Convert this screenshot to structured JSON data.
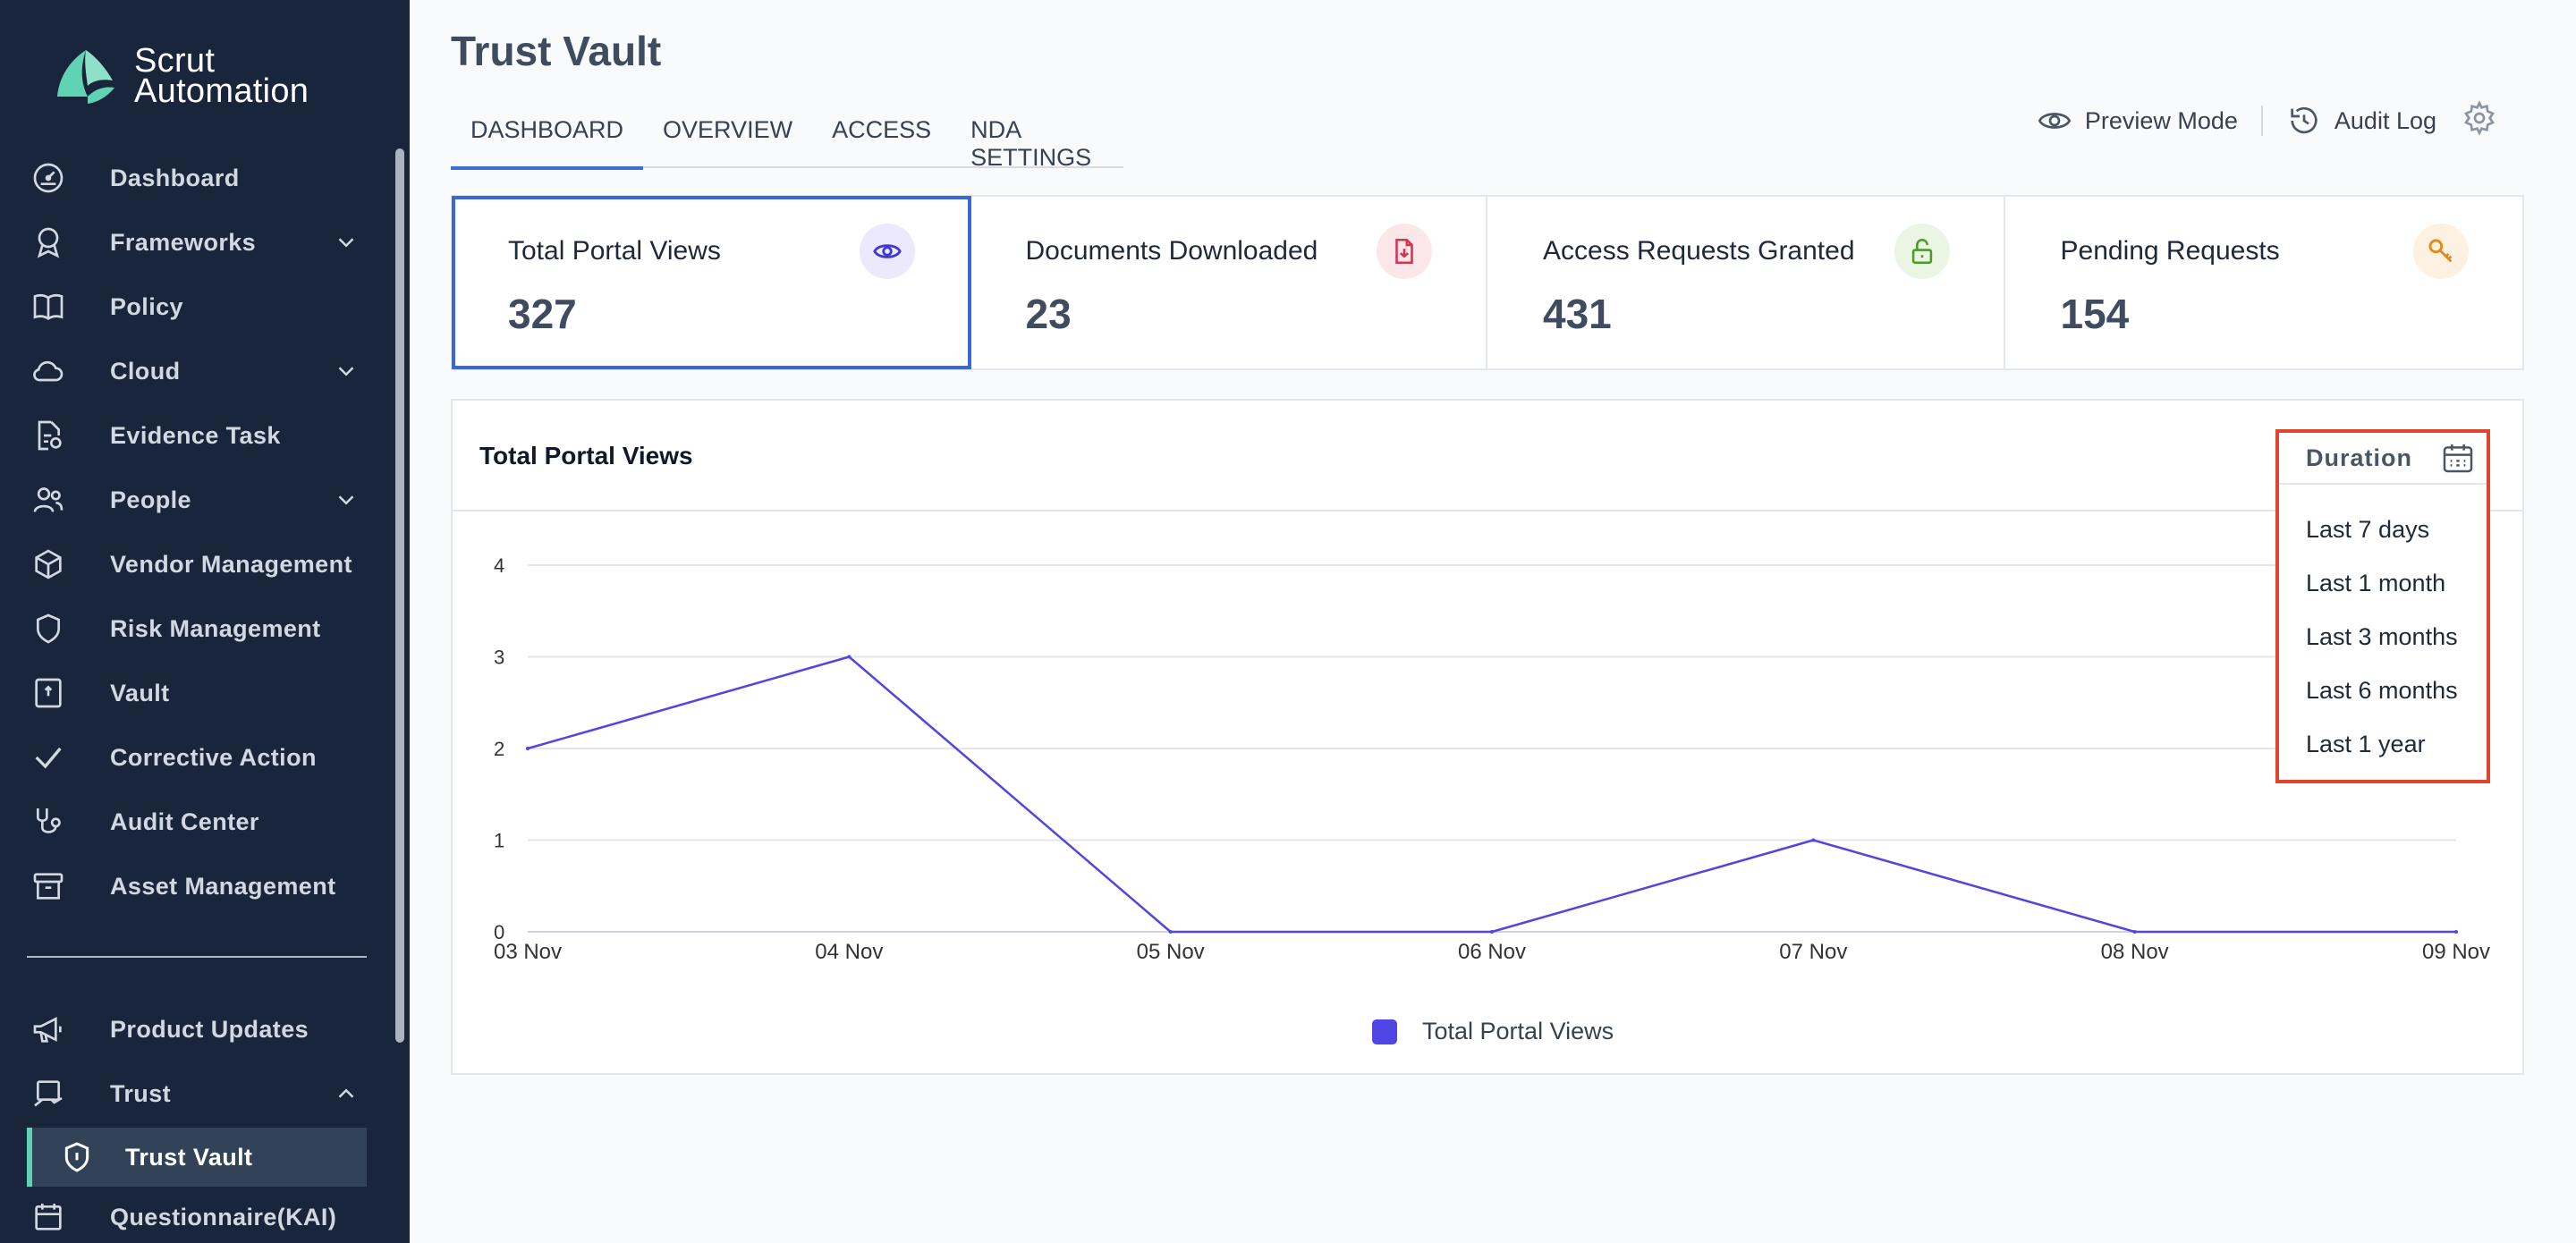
{
  "brand": {
    "line1": "Scrut",
    "line2": "Automation"
  },
  "sidebar": {
    "items": [
      {
        "label": "Dashboard",
        "icon": "gauge-icon"
      },
      {
        "label": "Frameworks",
        "icon": "award-icon",
        "expandable": true
      },
      {
        "label": "Policy",
        "icon": "book-icon"
      },
      {
        "label": "Cloud",
        "icon": "cloud-icon",
        "expandable": true
      },
      {
        "label": "Evidence Task",
        "icon": "evidence-icon"
      },
      {
        "label": "People",
        "icon": "people-icon",
        "expandable": true
      },
      {
        "label": "Vendor Management",
        "icon": "box-icon"
      },
      {
        "label": "Risk Management",
        "icon": "shield-icon"
      },
      {
        "label": "Vault",
        "icon": "vault-icon"
      },
      {
        "label": "Corrective Action",
        "icon": "check-icon"
      },
      {
        "label": "Audit Center",
        "icon": "stethoscope-icon"
      },
      {
        "label": "Asset Management",
        "icon": "archive-icon"
      }
    ],
    "bottom_items": [
      {
        "label": "Product Updates",
        "icon": "megaphone-icon"
      },
      {
        "label": "Trust",
        "icon": "trust-icon",
        "expanded": true
      },
      {
        "label": "Trust Vault",
        "icon": "shield-lock-icon",
        "active": true
      },
      {
        "label": "Questionnaire(KAI)",
        "icon": "calendar-icon"
      }
    ]
  },
  "header": {
    "title": "Trust Vault",
    "tabs": [
      {
        "label": "DASHBOARD",
        "active": true
      },
      {
        "label": "OVERVIEW"
      },
      {
        "label": "ACCESS"
      },
      {
        "label": "NDA SETTINGS"
      }
    ],
    "actions": {
      "preview": "Preview Mode",
      "audit": "Audit Log"
    }
  },
  "stats": [
    {
      "title": "Total Portal Views",
      "value": "327",
      "icon": "eye-icon",
      "color": "#4338ca",
      "bg": "#ebe9fb"
    },
    {
      "title": "Documents Downloaded",
      "value": "23",
      "icon": "file-download-icon",
      "color": "#d6334f",
      "bg": "#fbe7ea"
    },
    {
      "title": "Access Requests Granted",
      "value": "431",
      "icon": "unlock-icon",
      "color": "#4d9a2a",
      "bg": "#eaf5e3"
    },
    {
      "title": "Pending Requests",
      "value": "154",
      "icon": "key-icon",
      "color": "#e08a1e",
      "bg": "#fdf2e2"
    }
  ],
  "panel": {
    "title": "Total Portal Views"
  },
  "duration": {
    "label": "Duration",
    "options": [
      "Last 7 days",
      "Last 1 month",
      "Last 3 months",
      "Last 6 months",
      "Last 1 year"
    ]
  },
  "chart_data": {
    "type": "line",
    "categories": [
      "03 Nov",
      "04 Nov",
      "05 Nov",
      "06 Nov",
      "07 Nov",
      "08 Nov",
      "09 Nov"
    ],
    "series": [
      {
        "name": "Total Portal Views",
        "values": [
          2,
          3,
          0,
          0,
          1,
          0,
          0
        ],
        "color": "#4f46e5"
      }
    ],
    "yticks": [
      0,
      1,
      2,
      3,
      4
    ],
    "ylim": [
      0,
      4
    ],
    "grid": true,
    "legend": "bottom-center"
  }
}
